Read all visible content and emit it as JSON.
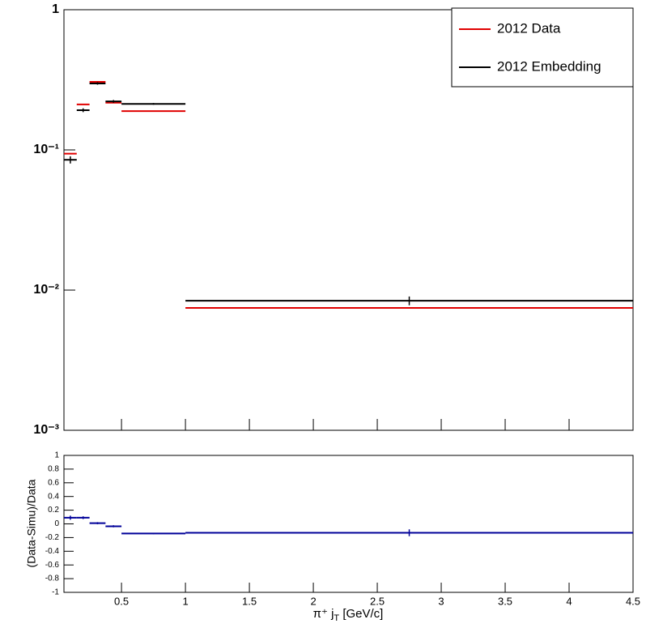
{
  "chart_data": [
    {
      "type": "histogram",
      "log_y": true,
      "legend": "top-right",
      "bins": [
        0.05,
        0.15,
        0.25,
        0.375,
        0.5,
        1,
        4.5
      ],
      "xlim": [
        0.05,
        4.5
      ],
      "ylim": [
        0.001,
        1
      ],
      "yticks": [
        {
          "value": 0.001,
          "label": "10⁻³"
        },
        {
          "value": 0.01,
          "label": "10⁻²"
        },
        {
          "value": 0.1,
          "label": "10⁻¹"
        },
        1
      ],
      "series": [
        {
          "name": "2012 Data",
          "color": "#e00000",
          "values": [
            0.094,
            0.211,
            0.306,
            0.217,
            0.189,
            0.00746
          ]
        },
        {
          "name": "2012 Embedding",
          "color": "#000000",
          "values": [
            0.085,
            0.192,
            0.298,
            0.222,
            0.213,
            0.0084
          ],
          "errors": [
            0.005,
            0.006,
            0.006,
            0.005,
            0.003,
            0.0006
          ]
        }
      ]
    },
    {
      "type": "histogram",
      "bins": [
        0.05,
        0.15,
        0.25,
        0.375,
        0.5,
        1,
        4.5
      ],
      "xlim": [
        0.05,
        4.5
      ],
      "xticks": [
        0.5,
        1,
        1.5,
        2,
        2.5,
        3,
        3.5,
        4,
        4.5
      ],
      "x_label": [
        "π⁺ j",
        "T",
        " [GeV/c]"
      ],
      "y_label": "(Data-Simu)/Data",
      "ylim": [
        -1,
        1
      ],
      "yticks": [
        -1,
        -0.8,
        -0.6,
        -0.4,
        -0.2,
        0,
        0.2,
        0.4,
        0.6,
        0.8,
        1
      ],
      "series": [
        {
          "color": "#000099",
          "values": [
            0.09,
            0.09,
            0.01,
            -0.035,
            -0.14,
            -0.13
          ],
          "errors": [
            0.03,
            0.02,
            0.015,
            0.015,
            0.01,
            0.05
          ]
        }
      ]
    }
  ]
}
